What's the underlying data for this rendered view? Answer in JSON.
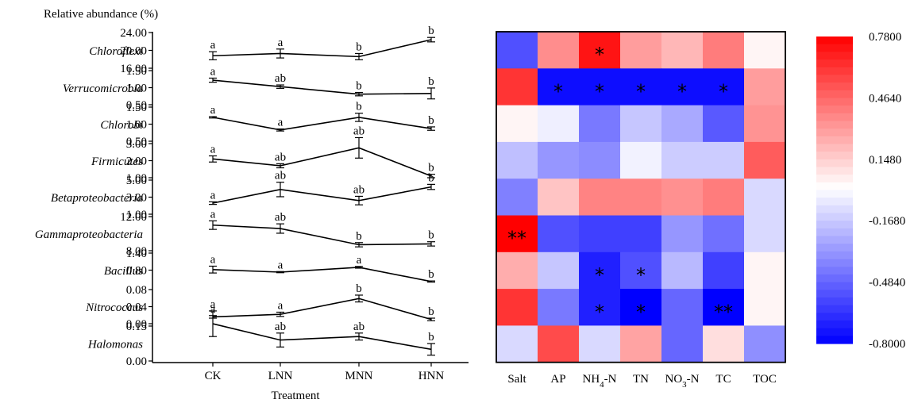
{
  "figure": {
    "left_ylabel": "Relative abundance (%)",
    "left_xlabel": "Treatment"
  },
  "chart_data": [
    {
      "type": "line",
      "categories": [
        "CK",
        "LNN",
        "MNN",
        "HNN"
      ],
      "ylabel": "Relative abundance (%)",
      "xlabel": "Treatment",
      "error_bars": true,
      "panels": [
        {
          "name": "Chloroflexi",
          "ylim": [
            16,
            24
          ],
          "ticks": [
            "16.00",
            "20.00",
            "24.00"
          ],
          "values": [
            18.8,
            19.3,
            18.6,
            22.4
          ],
          "errors": [
            0.9,
            1.0,
            0.7,
            0.5
          ],
          "letters": [
            "a",
            "a",
            "b",
            "b"
          ]
        },
        {
          "name": "Verrucomicrobia",
          "ylim": [
            0.5,
            1.5
          ],
          "ticks": [
            "0.50",
            "1.00",
            "1.50"
          ],
          "values": [
            1.22,
            1.03,
            0.81,
            0.83
          ],
          "errors": [
            0.06,
            0.05,
            0.05,
            0.16
          ],
          "letters": [
            "a",
            "ab",
            "b",
            "b"
          ]
        },
        {
          "name": "Chlorobi",
          "ylim": [
            0.5,
            1.5
          ],
          "ticks": [
            "0.50",
            "1.00",
            "1.50"
          ],
          "values": [
            1.2,
            0.83,
            1.2,
            0.87
          ],
          "errors": [
            0.02,
            0.03,
            0.12,
            0.05
          ],
          "letters": [
            "a",
            "a",
            "b",
            "b"
          ]
        },
        {
          "name": "Firmicutes",
          "ylim": [
            1,
            3
          ],
          "ticks": [
            "1.00",
            "2.00",
            "3.00"
          ],
          "values": [
            2.1,
            1.7,
            2.75,
            1.1
          ],
          "errors": [
            0.18,
            0.12,
            0.6,
            0.1
          ],
          "letters": [
            "a",
            "ab",
            "ab",
            "b"
          ]
        },
        {
          "name": "Betaproteobacteria",
          "ylim": [
            1,
            5
          ],
          "ticks": [
            "1.00",
            "3.00",
            "5.00"
          ],
          "values": [
            2.3,
            3.9,
            2.6,
            4.2
          ],
          "errors": [
            0.15,
            0.85,
            0.5,
            0.3
          ],
          "letters": [
            "a",
            "ab",
            "ab",
            "b"
          ]
        },
        {
          "name": "Gammaproteobacteria",
          "ylim": [
            8,
            12
          ],
          "ticks": [
            "8.00",
            "12.00"
          ],
          "values": [
            11.0,
            10.6,
            8.7,
            8.8
          ],
          "errors": [
            0.5,
            0.55,
            0.25,
            0.25
          ],
          "letters": [
            "a",
            "ab",
            "b",
            "b"
          ]
        },
        {
          "name": "Bacillus",
          "ylim": [
            0.2,
            1.4
          ],
          "ticks": [
            "0.80",
            "1.40"
          ],
          "values": [
            0.82,
            0.73,
            0.9,
            0.4
          ],
          "errors": [
            0.12,
            0.02,
            0.03,
            0.02
          ],
          "letters": [
            "a",
            "a",
            "a",
            "b"
          ]
        },
        {
          "name": "Nitrococcus",
          "ylim": [
            0.0,
            0.08
          ],
          "ticks": [
            "0.00",
            "0.04",
            "0.08"
          ],
          "values": [
            0.016,
            0.022,
            0.059,
            0.01
          ],
          "errors": [
            0.003,
            0.005,
            0.008,
            0.003
          ],
          "letters": [
            "a",
            "a",
            "b",
            "b"
          ]
        },
        {
          "name": "Halomonas",
          "ylim": [
            0.0,
            0.15
          ],
          "ticks": [
            "0.00",
            "0.15"
          ],
          "values": [
            0.16,
            0.09,
            0.105,
            0.05
          ],
          "errors": [
            0.055,
            0.03,
            0.015,
            0.025
          ],
          "letters": [
            "a",
            "ab",
            "ab",
            "b"
          ]
        }
      ]
    },
    {
      "type": "heatmap",
      "columns": [
        "Salt",
        "AP",
        "NH4-N",
        "TN",
        "NO3-N",
        "TC",
        "TOC"
      ],
      "rows": [
        "Chloroflexi",
        "Verrucomicrobia",
        "Chlorobi",
        "Firmicutes",
        "Betaproteobacteria",
        "Gammaproteobacteria",
        "Bacillus",
        "Nitrococcus",
        "Halomonas"
      ],
      "values": [
        [
          -0.55,
          0.35,
          0.72,
          0.3,
          0.22,
          0.4,
          0.03
        ],
        [
          0.62,
          -0.76,
          -0.76,
          -0.76,
          -0.76,
          -0.76,
          0.3
        ],
        [
          0.03,
          -0.05,
          -0.42,
          -0.18,
          -0.27,
          -0.52,
          0.33
        ],
        [
          -0.2,
          -0.33,
          -0.36,
          -0.04,
          -0.16,
          -0.16,
          0.5
        ],
        [
          -0.4,
          0.18,
          0.38,
          0.38,
          0.34,
          0.4,
          -0.12
        ],
        [
          0.78,
          -0.55,
          -0.6,
          -0.6,
          -0.33,
          -0.45,
          -0.12
        ],
        [
          0.25,
          -0.18,
          -0.7,
          -0.55,
          -0.22,
          -0.6,
          0.03
        ],
        [
          0.62,
          -0.42,
          -0.7,
          -0.8,
          -0.48,
          -0.8,
          0.03
        ],
        [
          -0.12,
          0.55,
          -0.12,
          0.28,
          -0.48,
          0.1,
          -0.35
        ]
      ],
      "significance": [
        [
          "",
          "",
          "*",
          "",
          "",
          "",
          ""
        ],
        [
          "",
          "*",
          "*",
          "*",
          "*",
          "*",
          ""
        ],
        [
          "",
          "",
          "",
          "",
          "",
          "",
          ""
        ],
        [
          "",
          "",
          "",
          "",
          "",
          "",
          ""
        ],
        [
          "",
          "",
          "",
          "",
          "",
          "",
          ""
        ],
        [
          "**",
          "",
          "",
          "",
          "",
          "",
          ""
        ],
        [
          "",
          "",
          "*",
          "*",
          "",
          "",
          ""
        ],
        [
          "",
          "",
          "*",
          "*",
          "",
          "**",
          ""
        ],
        [
          "",
          "",
          "",
          "",
          "",
          "",
          ""
        ]
      ],
      "colorbar": {
        "min": -0.8,
        "max": 0.78,
        "ticks": [
          "0.7800",
          "0.4640",
          "0.1480",
          "-0.1680",
          "-0.4840",
          "-0.8000"
        ],
        "colors": {
          "low": "#0000ff",
          "mid": "#ffffff",
          "high": "#ff0000"
        }
      }
    }
  ]
}
